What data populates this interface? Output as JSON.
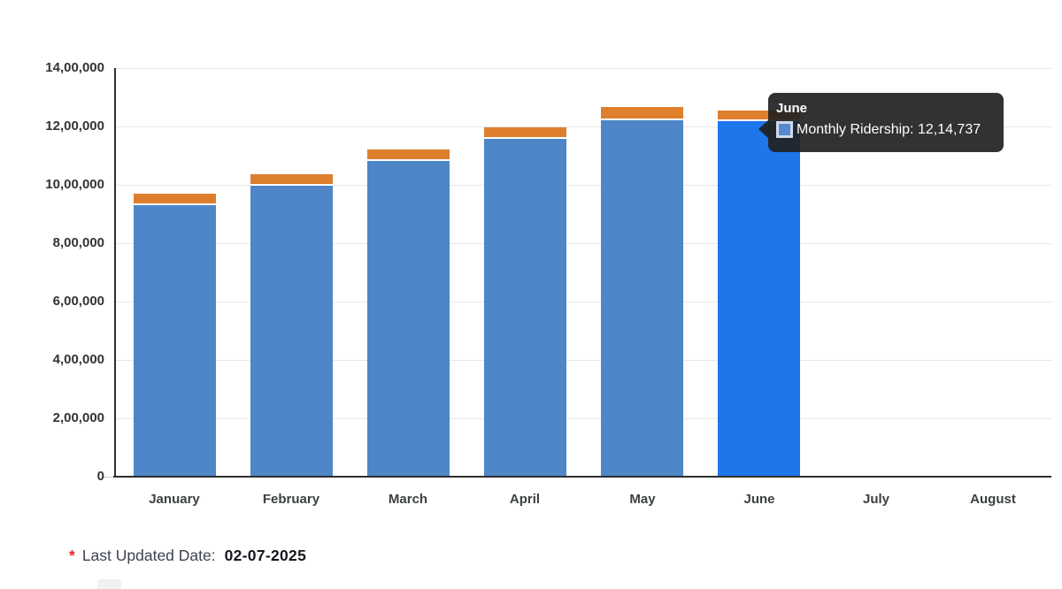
{
  "chart_data": {
    "type": "bar",
    "stacked": true,
    "title": "",
    "xlabel": "",
    "ylabel": "",
    "categories": [
      "January",
      "February",
      "March",
      "April",
      "May",
      "June",
      "July",
      "August"
    ],
    "series": [
      {
        "name": "Monthly Ridership",
        "color": "#4e86c8",
        "highlight_color": "#1d76ea",
        "highlighted_index": 5,
        "values": [
          928000,
          995000,
          1080000,
          1155000,
          1218000,
          1214737,
          0,
          0
        ]
      },
      {
        "name": "orange-cap-segment",
        "color": "#de7f2e",
        "values": [
          33000,
          33000,
          33000,
          33000,
          39000,
          30000,
          0,
          0
        ]
      }
    ],
    "ylim": [
      0,
      1400000
    ],
    "y_ticks": [
      "14,00,000",
      "12,00,000",
      "10,00,000",
      "8,00,000",
      "6,00,000",
      "4,00,000",
      "2,00,000",
      "0"
    ],
    "grid": true,
    "legend_position": "none"
  },
  "tooltip": {
    "title": "June",
    "series_color": "#5588cc",
    "text": "Monthly Ridership: 12,14,737"
  },
  "footer": {
    "asterisk": "*",
    "label": "Last Updated Date:",
    "value": "02-07-2025"
  }
}
